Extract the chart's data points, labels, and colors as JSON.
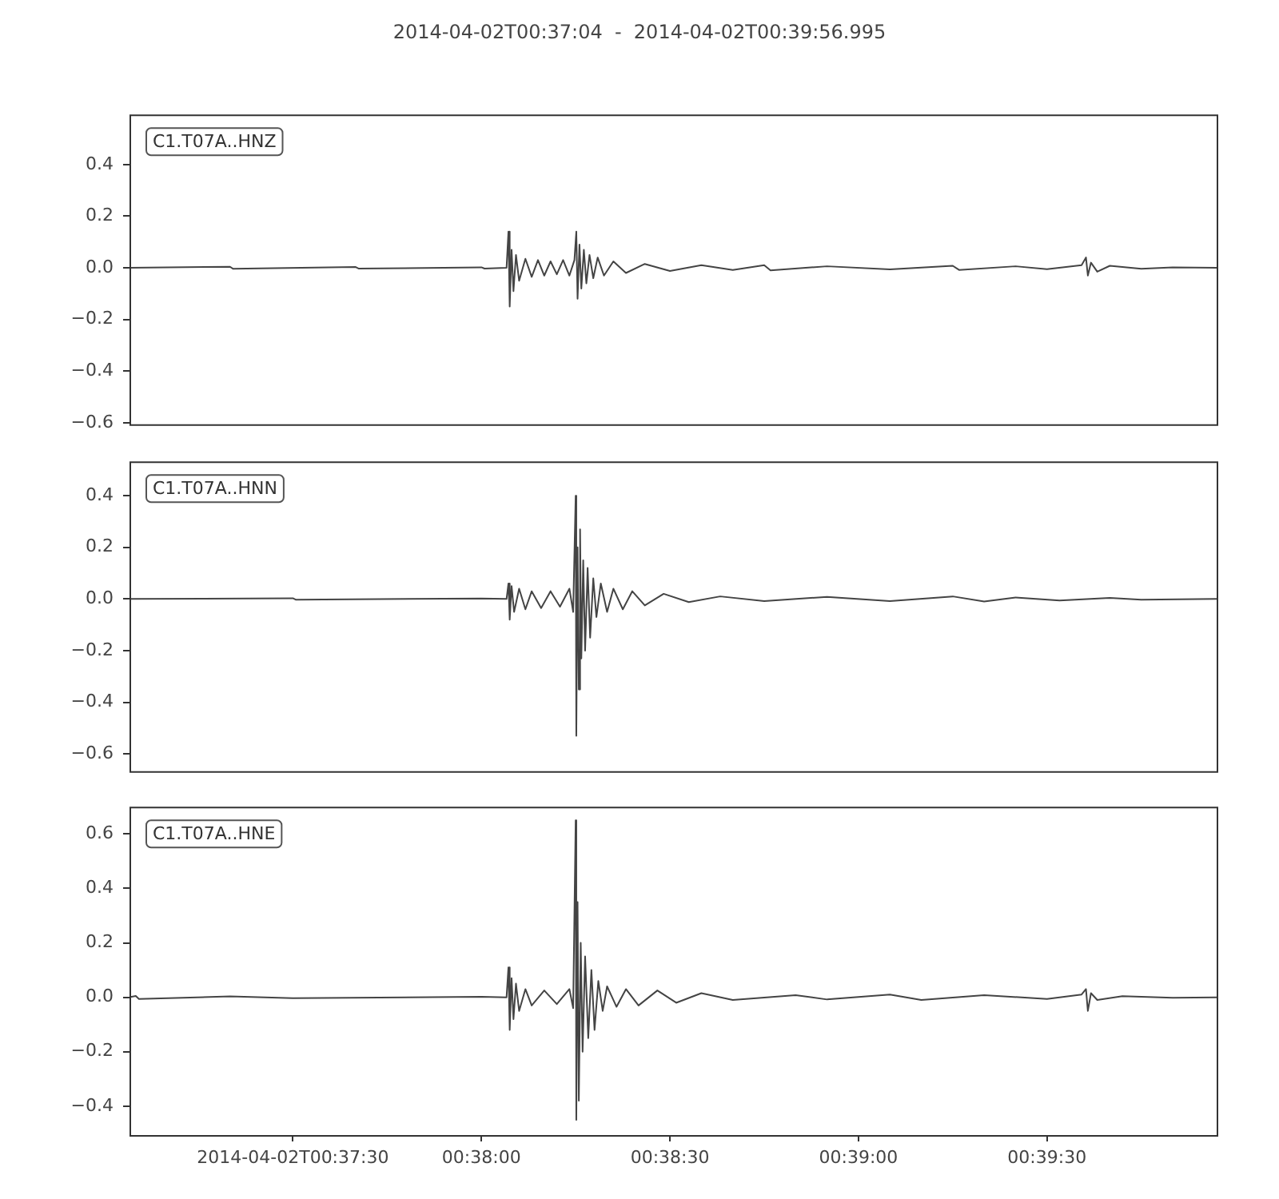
{
  "chart_data": [
    {
      "type": "line",
      "title": "2014-04-02T00:37:04  -  2014-04-02T00:39:56.995",
      "annotations": [
        "C1.T07A..HNZ"
      ],
      "tick_labels": "y",
      "xlim": [
        "2014-04-02T00:37:04",
        "2014-04-02T00:39:56.995"
      ],
      "ylim": [
        -0.606,
        0.594
      ],
      "yticks": [
        {
          "value": -0.6,
          "label": "−0.6"
        },
        {
          "value": -0.4,
          "label": "−0.4"
        },
        {
          "value": -0.2,
          "label": "−0.2"
        },
        {
          "value": 0.0,
          "label": "0.0"
        },
        {
          "value": 0.2,
          "label": "0.2"
        },
        {
          "value": 0.4,
          "label": "0.4"
        }
      ],
      "x": [
        "2014-04-02T00:37:04",
        "2014-04-02T00:37:20",
        "2014-04-02T00:37:20.5",
        "2014-04-02T00:37:40",
        "2014-04-02T00:37:40.5",
        "2014-04-02T00:38:00",
        "2014-04-02T00:38:00.5",
        "2014-04-02T00:38:04",
        "2014-04-02T00:38:04.3",
        "2014-04-02T00:38:04.5",
        "2014-04-02T00:38:04.8",
        "2014-04-02T00:38:05.1",
        "2014-04-02T00:38:05.5",
        "2014-04-02T00:38:06",
        "2014-04-02T00:38:07",
        "2014-04-02T00:38:08",
        "2014-04-02T00:38:09",
        "2014-04-02T00:38:10",
        "2014-04-02T00:38:11",
        "2014-04-02T00:38:12",
        "2014-04-02T00:38:13",
        "2014-04-02T00:38:14",
        "2014-04-02T00:38:14.8",
        "2014-04-02T00:38:15.1",
        "2014-04-02T00:38:15.3",
        "2014-04-02T00:38:15.6",
        "2014-04-02T00:38:15.9",
        "2014-04-02T00:38:16.3",
        "2014-04-02T00:38:16.7",
        "2014-04-02T00:38:17.2",
        "2014-04-02T00:38:17.8",
        "2014-04-02T00:38:18.5",
        "2014-04-02T00:38:19.5",
        "2014-04-02T00:38:21",
        "2014-04-02T00:38:23",
        "2014-04-02T00:38:26",
        "2014-04-02T00:38:30",
        "2014-04-02T00:38:35",
        "2014-04-02T00:38:40",
        "2014-04-02T00:38:45",
        "2014-04-02T00:38:46",
        "2014-04-02T00:38:55",
        "2014-04-02T00:39:05",
        "2014-04-02T00:39:15",
        "2014-04-02T00:39:16",
        "2014-04-02T00:39:25",
        "2014-04-02T00:39:30",
        "2014-04-02T00:39:35.5",
        "2014-04-02T00:39:36.2",
        "2014-04-02T00:39:36.5",
        "2014-04-02T00:39:37",
        "2014-04-02T00:39:38",
        "2014-04-02T00:39:40",
        "2014-04-02T00:39:45",
        "2014-04-02T00:39:50",
        "2014-04-02T00:39:56.995"
      ],
      "series": [
        {
          "color": "#444444",
          "values": [
            0,
            0.004,
            -0.004,
            0.003,
            -0.003,
            0.002,
            -0.003,
            0,
            0.14,
            -0.15,
            0.07,
            -0.09,
            0.05,
            -0.05,
            0.035,
            -0.035,
            0.03,
            -0.03,
            0.025,
            -0.025,
            0.03,
            -0.03,
            0.03,
            0.14,
            -0.12,
            0.09,
            -0.08,
            0.07,
            -0.06,
            0.05,
            -0.04,
            0.04,
            -0.03,
            0.025,
            -0.02,
            0.015,
            -0.012,
            0.01,
            -0.008,
            0.01,
            -0.01,
            0.006,
            -0.006,
            0.008,
            -0.008,
            0.006,
            -0.005,
            0.01,
            0.04,
            -0.03,
            0.02,
            -0.015,
            0.008,
            -0.004,
            0.002,
            0
          ]
        }
      ]
    },
    {
      "type": "line",
      "annotations": [
        "C1.T07A..HNN"
      ],
      "tick_labels": "y",
      "xlim": [
        "2014-04-02T00:37:04",
        "2014-04-02T00:39:56.995"
      ],
      "ylim": [
        -0.667,
        0.533
      ],
      "yticks": [
        {
          "value": -0.6,
          "label": "−0.6"
        },
        {
          "value": -0.4,
          "label": "−0.4"
        },
        {
          "value": -0.2,
          "label": "−0.2"
        },
        {
          "value": 0.0,
          "label": "0.0"
        },
        {
          "value": 0.2,
          "label": "0.2"
        },
        {
          "value": 0.4,
          "label": "0.4"
        }
      ],
      "x": [
        "2014-04-02T00:37:04",
        "2014-04-02T00:37:30",
        "2014-04-02T00:37:30.5",
        "2014-04-02T00:38:00",
        "2014-04-02T00:38:04",
        "2014-04-02T00:38:04.3",
        "2014-04-02T00:38:04.5",
        "2014-04-02T00:38:04.8",
        "2014-04-02T00:38:05.2",
        "2014-04-02T00:38:06",
        "2014-04-02T00:38:07",
        "2014-04-02T00:38:08",
        "2014-04-02T00:38:09.5",
        "2014-04-02T00:38:11",
        "2014-04-02T00:38:12.5",
        "2014-04-02T00:38:14",
        "2014-04-02T00:38:14.6",
        "2014-04-02T00:38:15",
        "2014-04-02T00:38:15.1",
        "2014-04-02T00:38:15.3",
        "2014-04-02T00:38:15.5",
        "2014-04-02T00:38:15.7",
        "2014-04-02T00:38:15.9",
        "2014-04-02T00:38:16.2",
        "2014-04-02T00:38:16.5",
        "2014-04-02T00:38:16.9",
        "2014-04-02T00:38:17.3",
        "2014-04-02T00:38:17.8",
        "2014-04-02T00:38:18.3",
        "2014-04-02T00:38:19",
        "2014-04-02T00:38:20",
        "2014-04-02T00:38:21",
        "2014-04-02T00:38:22.5",
        "2014-04-02T00:38:24",
        "2014-04-02T00:38:26",
        "2014-04-02T00:38:29",
        "2014-04-02T00:38:33",
        "2014-04-02T00:38:38",
        "2014-04-02T00:38:45",
        "2014-04-02T00:38:55",
        "2014-04-02T00:39:05",
        "2014-04-02T00:39:15",
        "2014-04-02T00:39:20",
        "2014-04-02T00:39:25",
        "2014-04-02T00:39:32",
        "2014-04-02T00:39:40",
        "2014-04-02T00:39:45",
        "2014-04-02T00:39:56.995"
      ],
      "series": [
        {
          "color": "#444444",
          "values": [
            0,
            0.003,
            -0.003,
            0.002,
            0,
            0.06,
            -0.08,
            0.05,
            -0.05,
            0.04,
            -0.04,
            0.03,
            -0.035,
            0.03,
            -0.03,
            0.04,
            -0.05,
            0.4,
            -0.53,
            0.2,
            -0.35,
            0.27,
            -0.23,
            0.15,
            -0.2,
            0.12,
            -0.15,
            0.08,
            -0.07,
            0.06,
            -0.05,
            0.04,
            -0.04,
            0.03,
            -0.025,
            0.02,
            -0.012,
            0.01,
            -0.008,
            0.008,
            -0.008,
            0.01,
            -0.01,
            0.006,
            -0.006,
            0.004,
            -0.003,
            0
          ]
        }
      ]
    },
    {
      "type": "line",
      "annotations": [
        "C1.T07A..HNE"
      ],
      "xlim": [
        "2014-04-02T00:37:04",
        "2014-04-02T00:39:56.995"
      ],
      "xticks": [
        {
          "value": "2014-04-02T00:37:30",
          "label": "2014-04-02T00:37:30"
        },
        {
          "value": "2014-04-02T00:38:00",
          "label": "00:38:00"
        },
        {
          "value": "2014-04-02T00:38:30",
          "label": "00:38:30"
        },
        {
          "value": "2014-04-02T00:39:00",
          "label": "00:39:00"
        },
        {
          "value": "2014-04-02T00:39:30",
          "label": "00:39:30"
        }
      ],
      "ylim": [
        -0.506,
        0.7
      ],
      "yticks": [
        {
          "value": -0.4,
          "label": "−0.4"
        },
        {
          "value": -0.2,
          "label": "−0.2"
        },
        {
          "value": 0.0,
          "label": "0.0"
        },
        {
          "value": 0.2,
          "label": "0.2"
        },
        {
          "value": 0.4,
          "label": "0.4"
        },
        {
          "value": 0.6,
          "label": "0.6"
        }
      ],
      "x": [
        "2014-04-02T00:37:04",
        "2014-04-02T00:37:05",
        "2014-04-02T00:37:05.5",
        "2014-04-02T00:37:20",
        "2014-04-02T00:37:30",
        "2014-04-02T00:38:00",
        "2014-04-02T00:38:04",
        "2014-04-02T00:38:04.3",
        "2014-04-02T00:38:04.5",
        "2014-04-02T00:38:04.8",
        "2014-04-02T00:38:05.1",
        "2014-04-02T00:38:05.5",
        "2014-04-02T00:38:06",
        "2014-04-02T00:38:07",
        "2014-04-02T00:38:08",
        "2014-04-02T00:38:10",
        "2014-04-02T00:38:12",
        "2014-04-02T00:38:14",
        "2014-04-02T00:38:14.6",
        "2014-04-02T00:38:15",
        "2014-04-02T00:38:15.1",
        "2014-04-02T00:38:15.3",
        "2014-04-02T00:38:15.5",
        "2014-04-02T00:38:15.8",
        "2014-04-02T00:38:16.1",
        "2014-04-02T00:38:16.5",
        "2014-04-02T00:38:17",
        "2014-04-02T00:38:17.5",
        "2014-04-02T00:38:18",
        "2014-04-02T00:38:18.6",
        "2014-04-02T00:38:19.3",
        "2014-04-02T00:38:20",
        "2014-04-02T00:38:21.5",
        "2014-04-02T00:38:23",
        "2014-04-02T00:38:25",
        "2014-04-02T00:38:28",
        "2014-04-02T00:38:31",
        "2014-04-02T00:38:35",
        "2014-04-02T00:38:40",
        "2014-04-02T00:38:50",
        "2014-04-02T00:38:55",
        "2014-04-02T00:39:05",
        "2014-04-02T00:39:10",
        "2014-04-02T00:39:20",
        "2014-04-02T00:39:30",
        "2014-04-02T00:39:35.5",
        "2014-04-02T00:39:36.2",
        "2014-04-02T00:39:36.5",
        "2014-04-02T00:39:37",
        "2014-04-02T00:39:38",
        "2014-04-02T00:39:42",
        "2014-04-02T00:39:50",
        "2014-04-02T00:39:56.995"
      ],
      "series": [
        {
          "color": "#444444",
          "values": [
            0,
            0.005,
            -0.006,
            0.003,
            -0.003,
            0.002,
            0,
            0.11,
            -0.12,
            0.07,
            -0.08,
            0.05,
            -0.05,
            0.03,
            -0.03,
            0.025,
            -0.025,
            0.03,
            -0.04,
            0.65,
            -0.45,
            0.35,
            -0.38,
            0.2,
            -0.2,
            0.15,
            -0.15,
            0.1,
            -0.12,
            0.06,
            -0.05,
            0.04,
            -0.035,
            0.03,
            -0.03,
            0.025,
            -0.02,
            0.015,
            -0.01,
            0.008,
            -0.008,
            0.01,
            -0.01,
            0.008,
            -0.006,
            0.01,
            0.03,
            -0.05,
            0.015,
            -0.01,
            0.004,
            -0.002,
            0
          ]
        }
      ]
    }
  ]
}
